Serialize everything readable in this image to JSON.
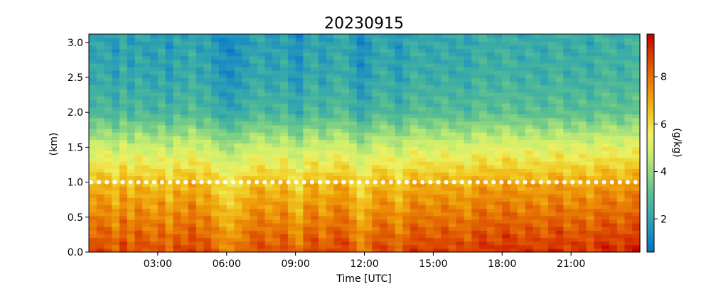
{
  "chart_data": {
    "type": "heatmap",
    "title": "20230915",
    "xlabel": "Time [UTC]",
    "ylabel": "(km)",
    "colorbar_label": "(g/kg)",
    "x_unit": "hours UTC",
    "xlim": [
      0,
      24
    ],
    "ylim": [
      0,
      3.12
    ],
    "x_ticks": [
      3,
      6,
      9,
      12,
      15,
      18,
      21
    ],
    "x_tick_labels": [
      "03:00",
      "06:00",
      "09:00",
      "12:00",
      "15:00",
      "18:00",
      "21:00"
    ],
    "y_ticks": [
      0.0,
      0.5,
      1.0,
      1.5,
      2.0,
      2.5,
      3.0
    ],
    "y_tick_labels": [
      "0.0",
      "0.5",
      "1.0",
      "1.5",
      "2.0",
      "2.5",
      "3.0"
    ],
    "colorbar_range": [
      0.6,
      9.8
    ],
    "colorbar_ticks": [
      2,
      4,
      6,
      8
    ],
    "colorbar_tick_labels": [
      "2",
      "4",
      "6",
      "8"
    ],
    "colormap": [
      "#0070c8",
      "#1e90c0",
      "#3aaca8",
      "#5cc090",
      "#90d880",
      "#c8ee70",
      "#eef060",
      "#f0c820",
      "#ee9a08",
      "#e46a04",
      "#d83a00",
      "#c00000"
    ],
    "time_columns": 72,
    "column_offsets": [
      0.0,
      0.3,
      0.2,
      -0.4,
      0.5,
      -0.3,
      0.4,
      0.0,
      -0.2,
      0.3,
      -0.5,
      0.3,
      0.0,
      0.6,
      -0.1,
      0.2,
      -0.4,
      -0.8,
      -1.0,
      -0.6,
      -0.3,
      0.1,
      0.3,
      -0.2,
      -0.1,
      0.3,
      -0.4,
      -0.8,
      0.2,
      0.4,
      -0.3,
      0.1,
      0.5,
      0.4,
      -0.2,
      -0.9,
      -0.4,
      0.2,
      0.4,
      0.1,
      -0.5,
      0.1,
      0.6,
      0.4,
      0.2,
      0.3,
      0.6,
      0.2,
      0.4,
      0.0,
      0.6,
      0.8,
      0.4,
      0.5,
      0.9,
      0.6,
      0.3,
      0.7,
      0.5,
      0.2,
      0.7,
      0.9,
      0.3,
      0.5,
      0.7,
      0.2,
      0.7,
      0.9,
      0.8,
      0.4,
      0.8,
      1.0
    ],
    "profile_heights_km": [
      0.0,
      0.5,
      1.0,
      1.5,
      2.0,
      2.5,
      3.0
    ],
    "profile_values": [
      8.6,
      7.6,
      6.6,
      4.9,
      2.7,
      2.1,
      1.9
    ],
    "marker_line": {
      "y": 1.0,
      "style": "dotted",
      "color": "#ffffff"
    }
  }
}
